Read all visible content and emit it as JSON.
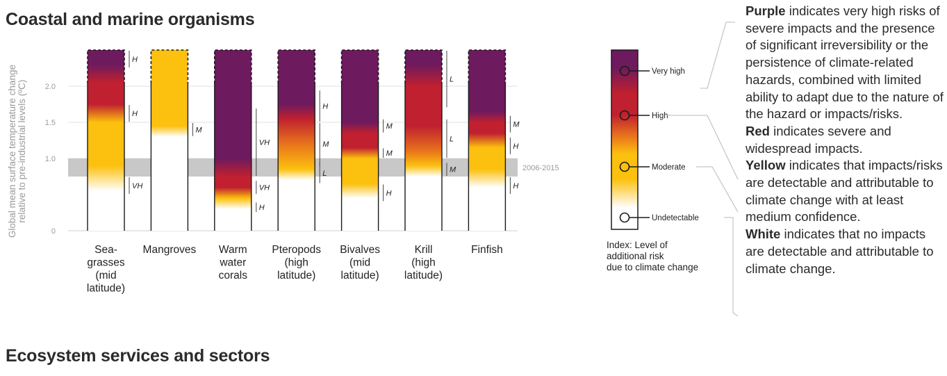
{
  "titles": {
    "top": "Coastal and marine organisms",
    "bottom": "Ecosystem services and sectors"
  },
  "colors": {
    "purple": "#6e1a5e",
    "red": "#c0202f",
    "orange": "#e8741c",
    "yellow": "#fcc00e",
    "white": "#ffffff",
    "observed_band": "#c8c8c8"
  },
  "chart_data": {
    "type": "burning-embers",
    "ylabel_line1": "Global mean surface temperature change",
    "ylabel_line2": "relative to pre-industrial levels (ºC)",
    "y_ticks": [
      "0",
      "1.0",
      "1.5",
      "2.0"
    ],
    "y_tick_values": [
      0,
      1.0,
      1.5,
      2.0
    ],
    "ylim": [
      0,
      2.5
    ],
    "observed_period": {
      "label": "2006-2015",
      "from": 0.75,
      "to": 1.0
    },
    "embers": [
      {
        "label": [
          "Sea-",
          "grasses",
          "(mid",
          "latitude)"
        ],
        "stops": [
          [
            0.55,
            "white"
          ],
          [
            0.9,
            "yellow"
          ],
          [
            1.5,
            "yellow"
          ],
          [
            1.75,
            "red"
          ],
          [
            2.05,
            "red"
          ],
          [
            2.3,
            "purple"
          ]
        ],
        "confidence": [
          {
            "from": 0.5,
            "to": 0.75,
            "label": "VH"
          },
          {
            "from": 1.5,
            "to": 1.75,
            "label": "H"
          },
          {
            "from": 2.25,
            "to": 2.5,
            "label": "H"
          }
        ]
      },
      {
        "label": [
          "Mangroves"
        ],
        "stops": [
          [
            1.3,
            "white"
          ],
          [
            1.45,
            "yellow"
          ]
        ],
        "confidence": [
          {
            "from": 1.3,
            "to": 1.5,
            "label": "M"
          }
        ]
      },
      {
        "label": [
          "Warm",
          "water",
          "corals"
        ],
        "stops": [
          [
            0.3,
            "white"
          ],
          [
            0.45,
            "yellow"
          ],
          [
            0.6,
            "red"
          ],
          [
            0.75,
            "red"
          ],
          [
            1.0,
            "purple"
          ]
        ],
        "confidence": [
          {
            "from": 0.25,
            "to": 0.4,
            "label": "H"
          },
          {
            "from": 0.5,
            "to": 0.7,
            "label": "VH"
          },
          {
            "from": 0.75,
            "to": 1.7,
            "label": "VH"
          }
        ]
      },
      {
        "label": [
          "Pteropods",
          "(high",
          "latitude)"
        ],
        "stops": [
          [
            0.7,
            "white"
          ],
          [
            0.85,
            "yellow"
          ],
          [
            1.2,
            "orange"
          ],
          [
            1.55,
            "red"
          ],
          [
            1.75,
            "purple"
          ]
        ],
        "confidence": [
          {
            "from": 0.65,
            "to": 0.95,
            "label": "L"
          },
          {
            "from": 0.9,
            "to": 1.5,
            "label": "M"
          },
          {
            "from": 1.5,
            "to": 1.95,
            "label": "H"
          }
        ]
      },
      {
        "label": [
          "Bivalves",
          "(mid",
          "latitude)"
        ],
        "stops": [
          [
            0.45,
            "white"
          ],
          [
            0.65,
            "yellow"
          ],
          [
            1.0,
            "yellow"
          ],
          [
            1.15,
            "red"
          ],
          [
            1.35,
            "red"
          ],
          [
            1.5,
            "purple"
          ]
        ],
        "confidence": [
          {
            "from": 0.4,
            "to": 0.65,
            "label": "H"
          },
          {
            "from": 1.0,
            "to": 1.15,
            "label": "M"
          },
          {
            "from": 1.35,
            "to": 1.55,
            "label": "M"
          }
        ]
      },
      {
        "label": [
          "Krill",
          "(high",
          "latitude)"
        ],
        "stops": [
          [
            0.75,
            "white"
          ],
          [
            0.9,
            "yellow"
          ],
          [
            1.1,
            "orange"
          ],
          [
            1.45,
            "red"
          ],
          [
            2.0,
            "red"
          ],
          [
            2.3,
            "purple"
          ]
        ],
        "confidence": [
          {
            "from": 0.75,
            "to": 0.95,
            "label": "M"
          },
          {
            "from": 1.0,
            "to": 1.55,
            "label": "L"
          },
          {
            "from": 1.7,
            "to": 2.5,
            "label": "L"
          }
        ]
      },
      {
        "label": [
          "Finfish"
        ],
        "stops": [
          [
            0.6,
            "white"
          ],
          [
            0.85,
            "yellow"
          ],
          [
            1.15,
            "yellow"
          ],
          [
            1.35,
            "red"
          ],
          [
            1.5,
            "red"
          ],
          [
            1.65,
            "purple"
          ]
        ],
        "confidence": [
          {
            "from": 0.5,
            "to": 0.75,
            "label": "H"
          },
          {
            "from": 1.05,
            "to": 1.3,
            "label": "H"
          },
          {
            "from": 1.35,
            "to": 1.6,
            "label": "M"
          }
        ]
      }
    ]
  },
  "index_legend": {
    "caption": [
      "Index: Level of",
      "additional risk",
      "due to climate change"
    ],
    "levels": [
      "Very high",
      "High",
      "Moderate",
      "Undetectable"
    ]
  },
  "descriptions": [
    {
      "bold": "Purple",
      "text": " indicates very high risks of severe impacts and the presence of significant irreversibility or the persistence of climate-related hazards, combined with limited ability to adapt due to the nature of the hazard or impacts/risks."
    },
    {
      "bold": "Red",
      "text": " indicates severe and widespread impacts."
    },
    {
      "bold": "Yellow",
      "text": " indicates that impacts/risks are detectable and attributable to climate change with at least medium confidence."
    },
    {
      "bold": "White",
      "text": " indicates that no impacts are detectable and attributable to climate change."
    }
  ]
}
